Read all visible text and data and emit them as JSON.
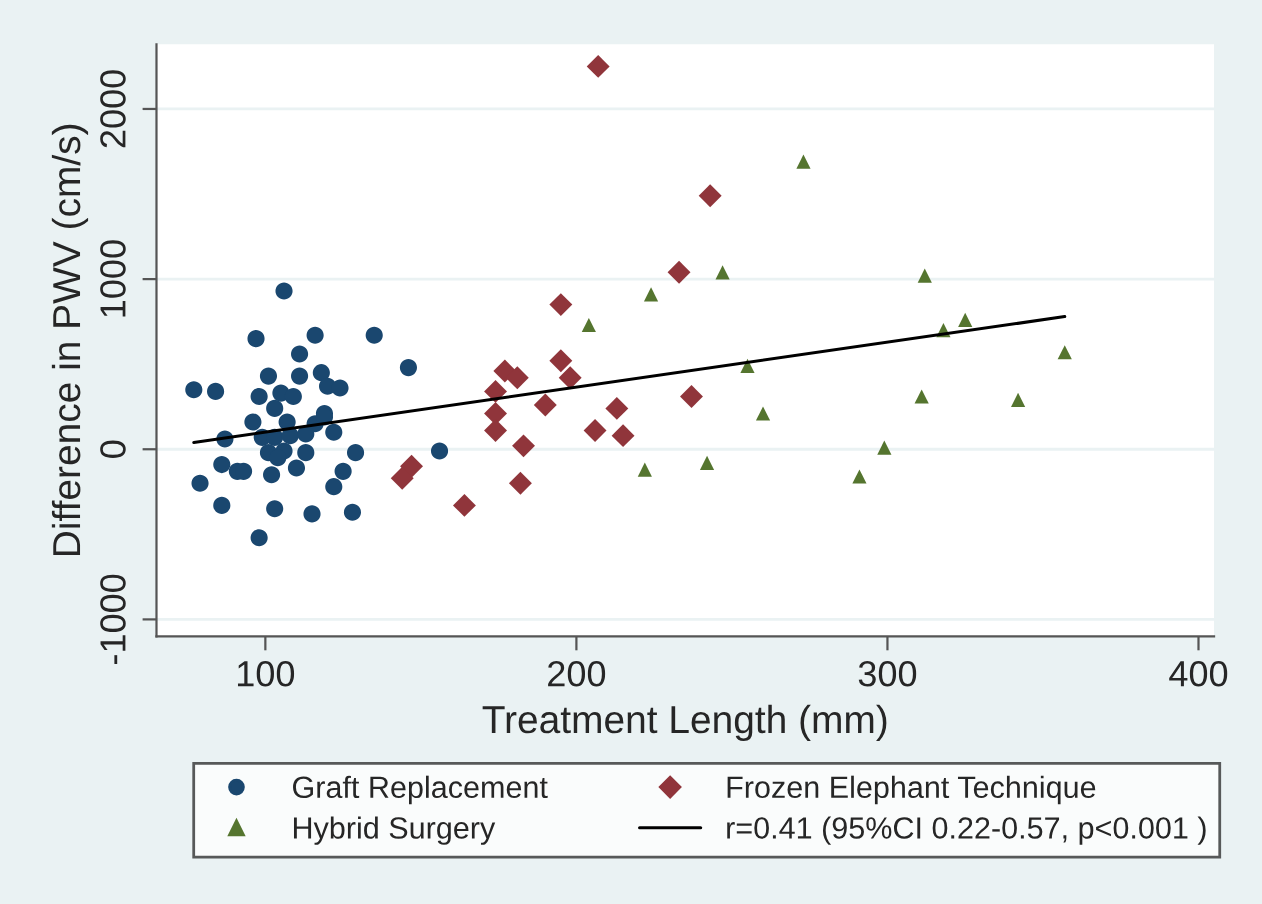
{
  "chart_data": {
    "type": "scatter",
    "xlabel": "Treatment Length (mm)",
    "ylabel": "Difference in PWV (cm/s)",
    "xlim": [
      65,
      405
    ],
    "ylim": [
      -1100,
      2380
    ],
    "xticks": [
      100,
      200,
      300,
      400
    ],
    "yticks": [
      -1000,
      0,
      1000,
      2000
    ],
    "grid": "y",
    "legend": "bottom",
    "series": [
      {
        "name": "Graft Replacement",
        "marker": "circle",
        "color": "#1a476f",
        "x": [
          106,
          97,
          116,
          135,
          111,
          146,
          101,
          111,
          118,
          77,
          84,
          98,
          105,
          109,
          120,
          124,
          103,
          119,
          96,
          107,
          116,
          119,
          122,
          87,
          99,
          103,
          108,
          113,
          101,
          106,
          113,
          129,
          104,
          86,
          91,
          93,
          110,
          125,
          102,
          79,
          122,
          86,
          103,
          115,
          128,
          98,
          156
        ],
        "values": [
          930,
          650,
          670,
          670,
          560,
          480,
          430,
          430,
          450,
          350,
          340,
          310,
          330,
          310,
          370,
          360,
          240,
          210,
          160,
          160,
          150,
          190,
          100,
          60,
          70,
          70,
          80,
          90,
          -20,
          -10,
          -20,
          -20,
          -50,
          -90,
          -130,
          -130,
          -110,
          -130,
          -150,
          -200,
          -220,
          -330,
          -350,
          -380,
          -370,
          -520,
          -10
        ]
      },
      {
        "name": "Frozen Elephant Technique",
        "marker": "diamond",
        "color": "#90353b",
        "x": [
          207,
          243,
          233,
          195,
          195,
          198,
          177,
          181,
          174,
          174,
          174,
          190,
          213,
          237,
          206,
          215,
          183,
          182,
          164,
          147,
          144
        ],
        "values": [
          2250,
          1490,
          1040,
          850,
          520,
          420,
          460,
          420,
          340,
          210,
          110,
          260,
          240,
          310,
          110,
          80,
          20,
          -200,
          -330,
          -100,
          -170
        ]
      },
      {
        "name": "Hybrid Surgery",
        "marker": "triangle",
        "color": "#55752f",
        "x": [
          273,
          247,
          312,
          224,
          204,
          318,
          325,
          357,
          255,
          260,
          311,
          342,
          299,
          222,
          242,
          291
        ],
        "values": [
          1690,
          1040,
          1020,
          910,
          730,
          700,
          760,
          570,
          490,
          210,
          310,
          290,
          10,
          -120,
          -80,
          -160
        ]
      },
      {
        "name": "r=0.41 (95%CI 0.22-0.57, p<0.001 )",
        "type": "line",
        "line_style": "solid",
        "marker": "none",
        "color": "#000000",
        "x": [
          77,
          357
        ],
        "values": [
          40,
          780
        ]
      }
    ]
  }
}
